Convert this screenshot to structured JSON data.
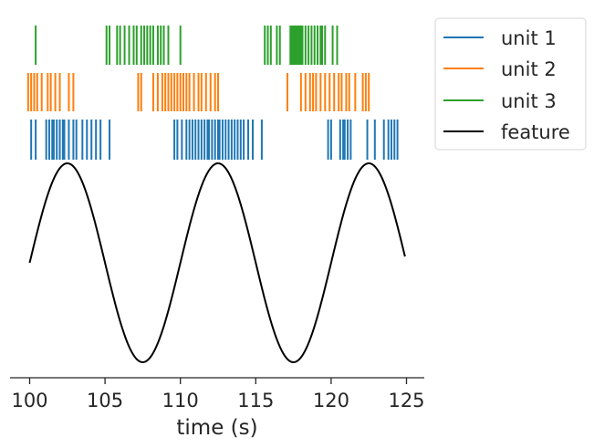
{
  "chart_data": {
    "type": "line",
    "title": "",
    "xlabel": "time (s)",
    "ylabel": "",
    "xlim": [
      98.7,
      126.1
    ],
    "xticks": [
      100,
      105,
      110,
      115,
      120,
      125
    ],
    "xtick_labels": [
      "100",
      "105",
      "110",
      "115",
      "120",
      "125"
    ],
    "grid": false,
    "legend_position": "outside upper right",
    "series": [
      {
        "name": "unit 1",
        "kind": "spike_raster",
        "color": "#1f77b4",
        "spike_times": [
          100.1,
          100.4,
          101.1,
          101.3,
          101.5,
          101.6,
          101.8,
          102.0,
          102.2,
          102.3,
          102.6,
          102.9,
          103.1,
          103.5,
          103.8,
          104.1,
          104.4,
          104.7,
          105.3,
          109.6,
          109.8,
          110.1,
          110.4,
          110.6,
          110.8,
          111.0,
          111.2,
          111.4,
          111.6,
          111.8,
          111.9,
          112.1,
          112.3,
          112.5,
          112.6,
          112.8,
          113.0,
          113.2,
          113.4,
          113.6,
          113.8,
          114.0,
          114.2,
          114.5,
          114.8,
          115.4,
          119.8,
          120.0,
          120.6,
          120.8,
          120.9,
          121.1,
          121.3,
          122.4,
          122.9,
          123.5,
          123.8,
          124.0,
          124.2,
          124.4
        ]
      },
      {
        "name": "unit 2",
        "kind": "spike_raster",
        "color": "#ff7f0e",
        "spike_times": [
          99.9,
          100.1,
          100.3,
          100.5,
          100.8,
          101.2,
          101.4,
          101.7,
          102.0,
          102.6,
          102.9,
          107.2,
          107.4,
          108.2,
          108.5,
          108.8,
          109.0,
          109.2,
          109.4,
          109.6,
          109.8,
          110.0,
          110.2,
          110.4,
          110.6,
          110.9,
          111.2,
          111.4,
          111.7,
          112.0,
          112.3,
          112.5,
          117.1,
          118.0,
          118.3,
          118.6,
          118.8,
          119.0,
          119.3,
          119.6,
          119.9,
          120.2,
          120.5,
          120.7,
          121.0,
          121.2,
          121.6,
          122.1,
          122.3,
          122.5
        ]
      },
      {
        "name": "unit 3",
        "kind": "spike_raster",
        "color": "#2ca02c",
        "spike_times": [
          100.4,
          105.1,
          105.3,
          105.8,
          106.0,
          106.3,
          106.6,
          106.9,
          107.1,
          107.4,
          107.6,
          107.8,
          108.0,
          108.2,
          108.5,
          108.7,
          108.9,
          109.2,
          110.0,
          115.6,
          115.8,
          116.0,
          116.4,
          116.6,
          117.3,
          117.4,
          117.5,
          117.6,
          117.7,
          117.8,
          117.9,
          118.0,
          118.1,
          118.3,
          118.5,
          118.7,
          118.9,
          119.1,
          119.3,
          119.4,
          119.6,
          120.1,
          120.4
        ]
      },
      {
        "name": "feature",
        "kind": "sine",
        "color": "#000000",
        "x_start": 100.0,
        "x_end": 124.9,
        "period": 10,
        "phase_offset": 0,
        "amplitude": 1
      }
    ]
  }
}
